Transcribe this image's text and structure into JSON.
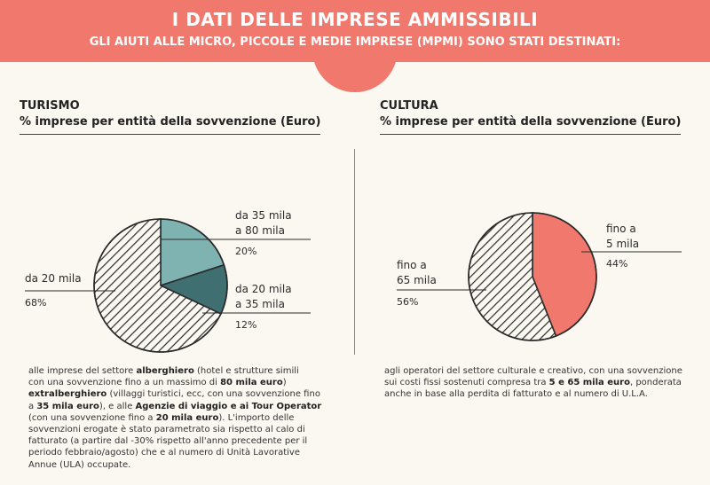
{
  "header": {
    "title": "I DATI DELLE IMPRESE AMMISSIBILI",
    "subtitle": "GLI AIUTI ALLE MICRO, PICCOLE E MEDIE IMPRESE (MPMI) SONO STATI DESTINATI:"
  },
  "colors": {
    "banner": "#f1786c",
    "turismo_light": "#7fb3b2",
    "turismo_dark": "#3f6f70",
    "cultura_red": "#f1786c",
    "hatch": "#2b2b2b"
  },
  "chart_data": [
    {
      "type": "pie",
      "title": "TURISMO",
      "subtitle": "% imprese per entità della sovvenzione (Euro)",
      "slices": [
        {
          "label": "da 35 mila a 80 mila",
          "label_lines": [
            "da 35 mila",
            "a 80 mila"
          ],
          "value": 20,
          "value_label": "20%",
          "fill": "solid",
          "color": "#7fb3b2"
        },
        {
          "label": "da 20 mila a 35 mila",
          "label_lines": [
            "da 20 mila",
            "a 35 mila"
          ],
          "value": 12,
          "value_label": "12%",
          "fill": "solid",
          "color": "#3f6f70"
        },
        {
          "label": "da 20 mila",
          "label_lines": [
            "da 20 mila"
          ],
          "value": 68,
          "value_label": "68%",
          "fill": "hatched",
          "color": "#2b2b2b"
        }
      ]
    },
    {
      "type": "pie",
      "title": "CULTURA",
      "subtitle": "% imprese per entità della sovvenzione (Euro)",
      "slices": [
        {
          "label": "fino a 5 mila",
          "label_lines": [
            "fino a",
            "5 mila"
          ],
          "value": 44,
          "value_label": "44%",
          "fill": "solid",
          "color": "#f1786c"
        },
        {
          "label": "fino a 65 mila",
          "label_lines": [
            "fino a",
            "65 mila"
          ],
          "value": 56,
          "value_label": "56%",
          "fill": "hatched",
          "color": "#2b2b2b"
        }
      ]
    }
  ],
  "turismo_text": {
    "lines": [
      [
        {
          "t": "alle imprese del settore "
        },
        {
          "t": "alberghiero",
          "b": true
        },
        {
          "t": " (hotel e strutture simili"
        }
      ],
      [
        {
          "t": "con una sovvenzione fino a un massimo di "
        },
        {
          "t": "80 mila euro",
          "b": true
        },
        {
          "t": ")"
        }
      ],
      [
        {
          "t": "extralberghiero",
          "b": true
        },
        {
          "t": " (villaggi turistici, ecc, con una sovvenzione fino"
        }
      ],
      [
        {
          "t": "a "
        },
        {
          "t": "35 mila euro",
          "b": true
        },
        {
          "t": "), e alle "
        },
        {
          "t": "Agenzie di viaggio e ai Tour Operator",
          "b": true
        }
      ],
      [
        {
          "t": "(con una sovvenzione fino a "
        },
        {
          "t": "20 mila euro",
          "b": true
        },
        {
          "t": "). L'importo delle"
        }
      ],
      [
        {
          "t": "sovvenzioni erogate è stato parametrato sia rispetto al calo di"
        }
      ],
      [
        {
          "t": "fatturato (a partire dal -30% rispetto all'anno precedente per il"
        }
      ],
      [
        {
          "t": "periodo febbraio/agosto) che e al numero di Unità Lavorative"
        }
      ],
      [
        {
          "t": "Annue (ULA) occupate."
        }
      ]
    ]
  },
  "cultura_text": {
    "lines": [
      [
        {
          "t": "agli operatori del settore culturale e creativo, con una sovvenzione"
        }
      ],
      [
        {
          "t": "sui costi fissi sostenuti compresa tra "
        },
        {
          "t": "5 e 65 mila euro",
          "b": true
        },
        {
          "t": ", ponderata"
        }
      ],
      [
        {
          "t": "anche in base alla perdita di fatturato e al numero di U.L.A."
        }
      ]
    ]
  }
}
